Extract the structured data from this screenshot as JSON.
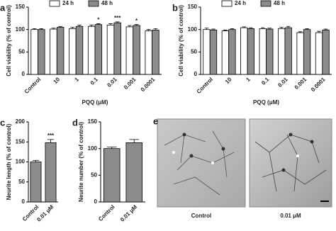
{
  "chart_data": [
    {
      "type": "bar",
      "panel": "a",
      "ylabel": "Cell viability (% of control)",
      "xlabel": "PQQ (μM)",
      "categories": [
        "Control",
        "10",
        "1",
        "0.1",
        "0.01",
        "0.001",
        "0.0001"
      ],
      "series": [
        {
          "name": "24 h",
          "color": "#ffffff",
          "values": [
            100,
            101,
            102,
            107,
            110,
            106,
            97
          ],
          "errors": [
            2,
            2,
            3,
            3,
            3,
            3,
            3
          ],
          "significance": [
            null,
            null,
            null,
            null,
            null,
            null,
            null
          ]
        },
        {
          "name": "48 h",
          "color": "#8c8c8c",
          "values": [
            100,
            105,
            107,
            111,
            115,
            109,
            99
          ],
          "errors": [
            2,
            2,
            3,
            2,
            2,
            2,
            3
          ],
          "significance": [
            null,
            null,
            null,
            "*",
            "***",
            "*",
            null
          ]
        }
      ],
      "ylim": [
        0,
        150
      ],
      "yticks": [
        0,
        50,
        100,
        150
      ],
      "legend": "top"
    },
    {
      "type": "bar",
      "panel": "b",
      "ylabel": "Cell viability (% of control)",
      "xlabel": "PQQ (μM)",
      "categories": [
        "Control",
        "10",
        "1",
        "0.1",
        "0.01",
        "0.001",
        "0.0001"
      ],
      "series": [
        {
          "name": "24 h",
          "color": "#ffffff",
          "values": [
            100,
            97,
            104,
            102,
            102,
            93,
            93
          ],
          "errors": [
            3,
            2,
            2,
            2,
            3,
            2,
            3
          ],
          "significance": [
            null,
            null,
            null,
            null,
            null,
            null,
            null
          ]
        },
        {
          "name": "48 h",
          "color": "#8c8c8c",
          "values": [
            99,
            100,
            102,
            101,
            104,
            100,
            99
          ],
          "errors": [
            2,
            2,
            2,
            2,
            3,
            2,
            2
          ],
          "significance": [
            null,
            null,
            null,
            null,
            null,
            null,
            null
          ]
        }
      ],
      "ylim": [
        0,
        150
      ],
      "yticks": [
        0,
        50,
        100,
        150
      ],
      "legend": "top"
    },
    {
      "type": "bar",
      "panel": "c",
      "ylabel": "Neurite length (% of control)",
      "categories": [
        "Control",
        "0.01 μM"
      ],
      "values": [
        100,
        148
      ],
      "errors": [
        4,
        8
      ],
      "significance": [
        null,
        "***"
      ],
      "color": "#8c8c8c",
      "ylim": [
        0,
        200
      ],
      "yticks": [
        0,
        50,
        100,
        150,
        200
      ]
    },
    {
      "type": "bar",
      "panel": "d",
      "ylabel": "Neurite number (% of control)",
      "categories": [
        "Control",
        "0.01 μM"
      ],
      "values": [
        100,
        111
      ],
      "errors": [
        3,
        6
      ],
      "significance": [
        null,
        null
      ],
      "color": "#8c8c8c",
      "ylim": [
        0,
        150
      ],
      "yticks": [
        0,
        50,
        100,
        150
      ]
    }
  ],
  "figure_e": {
    "panel": "e",
    "captions": [
      "Control",
      "0.01 μM"
    ]
  }
}
